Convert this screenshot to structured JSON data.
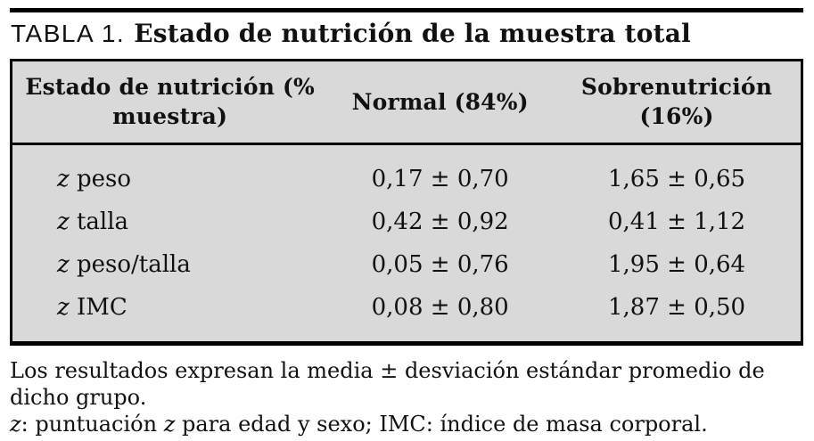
{
  "colors": {
    "table_bg": "#d9d9d9",
    "rule": "#000000",
    "page_bg": "#ffffff"
  },
  "title": {
    "label": "TABLA 1.",
    "text": "Estado de nutrición de la muestra total"
  },
  "table": {
    "header": [
      {
        "line1": "Estado de nutrición",
        "line2": "(% muestra)"
      },
      {
        "line1": "Normal",
        "line2": "(84%)"
      },
      {
        "line1": "Sobrenutrición",
        "line2": "(16%)"
      }
    ],
    "rows": [
      {
        "z": "z",
        "label": " peso",
        "normal": "0,17 ± 0,70",
        "over": "1,65 ± 0,65"
      },
      {
        "z": "z",
        "label": " talla",
        "normal": "0,42 ± 0,92",
        "over": "0,41 ± 1,12"
      },
      {
        "z": "z",
        "label": " peso/talla",
        "normal": "0,05 ± 0,76",
        "over": "1,95 ± 0,64"
      },
      {
        "z": "z",
        "label": " IMC",
        "normal": "0,08 ± 0,80",
        "over": "1,87 ± 0,50"
      }
    ]
  },
  "footnotes": {
    "line1": "Los resultados expresan la media ± desviación estándar promedio de dicho grupo.",
    "line2_parts": {
      "z1": "z",
      "t1": ": puntuación ",
      "z2": "z",
      "t2": " para edad y sexo; IMC: índice de masa corporal."
    }
  }
}
